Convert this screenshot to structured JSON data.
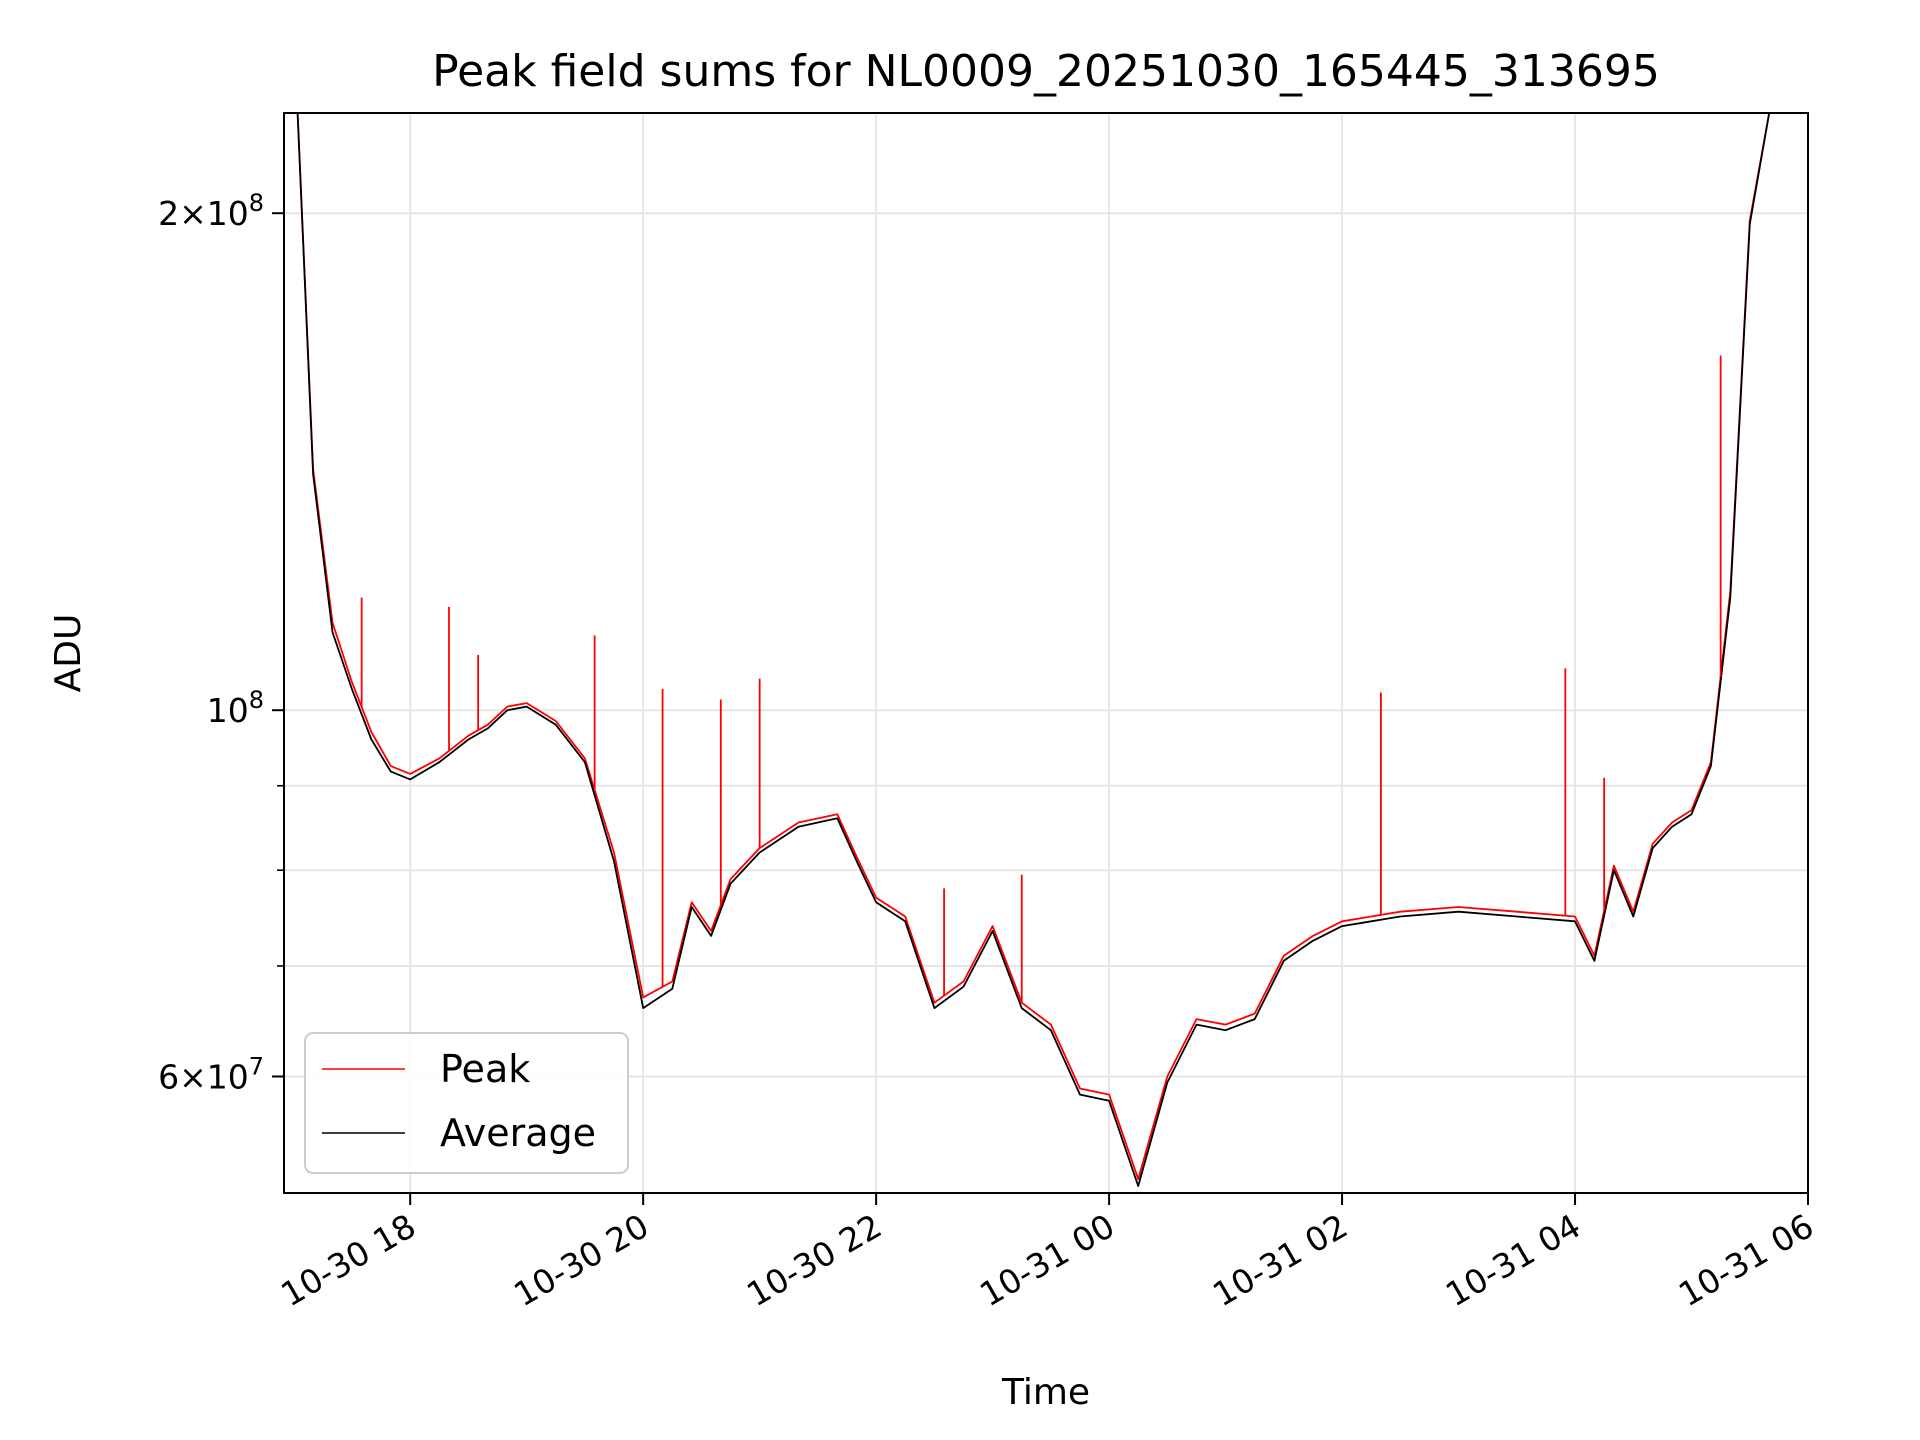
{
  "chart_data": {
    "type": "line",
    "title": "Peak field sums for NL0009_20251030_165445_313695",
    "xlabel": "Time",
    "ylabel": "ADU",
    "yscale": "log",
    "xlim": [
      "2025-10-30 16:55",
      "2025-10-31 06:00"
    ],
    "ylim": [
      51000000,
      230000000
    ],
    "grid": true,
    "legend_position": "lower-left",
    "x_ticks": [
      "10-30 18",
      "10-30 20",
      "10-30 22",
      "10-31 00",
      "10-31 02",
      "10-31 04",
      "10-31 06"
    ],
    "y_ticks": [
      {
        "value": 200000000,
        "mantissa": "2",
        "exponent": "8"
      },
      {
        "value": 100000000,
        "mantissa": "",
        "exponent": "8"
      },
      {
        "value": 60000000,
        "mantissa": "6",
        "exponent": "7"
      }
    ],
    "x": [
      "2025-10-30 17:02",
      "2025-10-30 17:10",
      "2025-10-30 17:20",
      "2025-10-30 17:30",
      "2025-10-30 17:40",
      "2025-10-30 17:50",
      "2025-10-30 18:00",
      "2025-10-30 18:15",
      "2025-10-30 18:30",
      "2025-10-30 18:40",
      "2025-10-30 18:50",
      "2025-10-30 19:00",
      "2025-10-30 19:15",
      "2025-10-30 19:30",
      "2025-10-30 19:45",
      "2025-10-30 20:00",
      "2025-10-30 20:15",
      "2025-10-30 20:25",
      "2025-10-30 20:35",
      "2025-10-30 20:45",
      "2025-10-30 21:00",
      "2025-10-30 21:20",
      "2025-10-30 21:40",
      "2025-10-30 21:50",
      "2025-10-30 22:00",
      "2025-10-30 22:15",
      "2025-10-30 22:30",
      "2025-10-30 22:45",
      "2025-10-30 23:00",
      "2025-10-30 23:15",
      "2025-10-30 23:30",
      "2025-10-30 23:45",
      "2025-10-31 00:00",
      "2025-10-31 00:15",
      "2025-10-31 00:30",
      "2025-10-31 00:45",
      "2025-10-31 01:00",
      "2025-10-31 01:15",
      "2025-10-31 01:30",
      "2025-10-31 01:45",
      "2025-10-31 02:00",
      "2025-10-31 02:15",
      "2025-10-31 02:30",
      "2025-10-31 03:00",
      "2025-10-31 03:30",
      "2025-10-31 04:00",
      "2025-10-31 04:10",
      "2025-10-31 04:20",
      "2025-10-31 04:30",
      "2025-10-31 04:40",
      "2025-10-31 04:50",
      "2025-10-31 05:00",
      "2025-10-31 05:10",
      "2025-10-31 05:20",
      "2025-10-31 05:30",
      "2025-10-31 05:40",
      "2025-10-31 05:50"
    ],
    "series": [
      {
        "name": "Peak",
        "color": "#ff0000",
        "values": [
          230000000,
          140000000,
          113000000,
          104000000,
          97000000,
          92500000,
          91500000,
          93500000,
          96500000,
          98000000,
          100500000,
          101000000,
          98500000,
          93500000,
          82000000,
          67000000,
          68500000,
          76500000,
          73500000,
          79000000,
          82500000,
          85500000,
          86500000,
          81500000,
          77000000,
          75000000,
          66500000,
          68500000,
          74000000,
          66500000,
          64500000,
          59000000,
          58500000,
          52000000,
          60000000,
          65000000,
          64500000,
          65500000,
          71000000,
          73000000,
          74500000,
          75000000,
          75500000,
          76000000,
          75500000,
          75000000,
          71000000,
          80500000,
          75500000,
          83000000,
          85500000,
          87000000,
          93000000,
          118000000,
          198000000,
          230000000,
          230000000
        ],
        "spikes": [
          {
            "x": "2025-10-30 17:35",
            "y": 117000000
          },
          {
            "x": "2025-10-30 18:20",
            "y": 115500000
          },
          {
            "x": "2025-10-30 18:35",
            "y": 108000000
          },
          {
            "x": "2025-10-30 19:35",
            "y": 111000000
          },
          {
            "x": "2025-10-30 20:10",
            "y": 103000000
          },
          {
            "x": "2025-10-30 20:40",
            "y": 101500000
          },
          {
            "x": "2025-10-30 21:00",
            "y": 104500000
          },
          {
            "x": "2025-10-30 22:35",
            "y": 78000000
          },
          {
            "x": "2025-10-30 23:15",
            "y": 79500000
          },
          {
            "x": "2025-10-31 02:20",
            "y": 102500000
          },
          {
            "x": "2025-10-31 03:55",
            "y": 106000000
          },
          {
            "x": "2025-10-31 04:15",
            "y": 91000000
          },
          {
            "x": "2025-10-31 05:15",
            "y": 164000000
          }
        ]
      },
      {
        "name": "Average",
        "color": "#000000",
        "values": [
          230000000,
          139000000,
          111500000,
          103000000,
          96000000,
          91800000,
          90800000,
          93000000,
          96000000,
          97500000,
          100000000,
          100500000,
          98000000,
          93000000,
          81000000,
          66000000,
          67800000,
          76000000,
          73000000,
          78500000,
          82000000,
          85000000,
          86000000,
          81000000,
          76500000,
          74500000,
          66000000,
          68000000,
          73500000,
          66000000,
          64000000,
          58500000,
          58000000,
          51500000,
          59500000,
          64500000,
          64000000,
          65000000,
          70500000,
          72500000,
          74000000,
          74500000,
          75000000,
          75500000,
          75000000,
          74500000,
          70500000,
          80000000,
          75000000,
          82500000,
          85000000,
          86500000,
          92500000,
          117000000,
          197000000,
          230000000,
          230000000
        ]
      }
    ]
  }
}
